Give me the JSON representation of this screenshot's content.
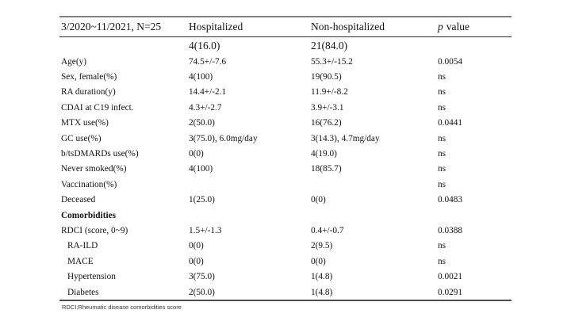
{
  "table": {
    "header": {
      "col1": "3/2020~11/2021, N=25",
      "col2": "Hospitalized",
      "col3": "Non-hospitalized",
      "p_italic": "p",
      "p_rest": "value"
    },
    "counts": {
      "hospitalized": "4(16.0)",
      "non_hospitalized": "21(84.0)"
    },
    "rows": [
      {
        "label": "Age(y)",
        "hosp": "74.5+/-7.6",
        "nonhosp": "55.3+/-15.2",
        "p": "0.0054",
        "variant": ""
      },
      {
        "label": "Sex, female(%)",
        "hosp": "4(100)",
        "nonhosp": "19(90.5)",
        "p": "ns",
        "variant": ""
      },
      {
        "label": "RA duration(y)",
        "hosp": "14.4+/-2.1",
        "nonhosp": "11.9+/-8.2",
        "p": "ns",
        "variant": ""
      },
      {
        "label": "CDAI at C19 infect.",
        "hosp": "4.3+/-2.7",
        "nonhosp": "3.9+/-3.1",
        "p": "ns",
        "variant": ""
      },
      {
        "label": "MTX use(%)",
        "hosp": "2(50.0)",
        "nonhosp": "16(76.2)",
        "p": "0.0441",
        "variant": ""
      },
      {
        "label": "GC use(%)",
        "hosp": "3(75.0), 6.0mg/day",
        "nonhosp": "3(14.3), 4.7mg/day",
        "p": "ns",
        "variant": ""
      },
      {
        "label": "b/tsDMARDs use(%)",
        "hosp": "0(0)",
        "nonhosp": "4(19.0)",
        "p": "ns",
        "variant": ""
      },
      {
        "label": "Never smoked(%)",
        "hosp": "4(100)",
        "nonhosp": "18(85.7)",
        "p": "ns",
        "variant": ""
      },
      {
        "label": "Vaccination(%)",
        "hosp": "",
        "nonhosp": "",
        "p": "ns",
        "variant": ""
      },
      {
        "label": "Deceased",
        "hosp": "1(25.0)",
        "nonhosp": "0(0)",
        "p": "0.0483",
        "variant": ""
      },
      {
        "label": "Comorbidities",
        "hosp": "",
        "nonhosp": "",
        "p": "",
        "variant": "section"
      },
      {
        "label": "RDCI (score, 0~9)",
        "hosp": "1.5+/-1.3",
        "nonhosp": "0.4+/-0.7",
        "p": "0.0388",
        "variant": ""
      },
      {
        "label": "RA-ILD",
        "hosp": "0(0)",
        "nonhosp": "2(9.5)",
        "p": "ns",
        "variant": "indent"
      },
      {
        "label": "MACE",
        "hosp": "0(0)",
        "nonhosp": "0(0)",
        "p": "ns",
        "variant": "indent"
      },
      {
        "label": "Hypertension",
        "hosp": "3(75.0)",
        "nonhosp": "1(4.8)",
        "p": "0.0021",
        "variant": "indent"
      },
      {
        "label": "Diabetes",
        "hosp": "2(50.0)",
        "nonhosp": "1(4.8)",
        "p": "0.0291",
        "variant": "indent"
      }
    ],
    "footnote": "RDCI;Rheumatic disease comorbidities score"
  },
  "colors": {
    "rule_top": "#808080",
    "rule_header": "#2b2b2b",
    "rule_bottom": "#4d4d4d",
    "text": "#111111"
  }
}
